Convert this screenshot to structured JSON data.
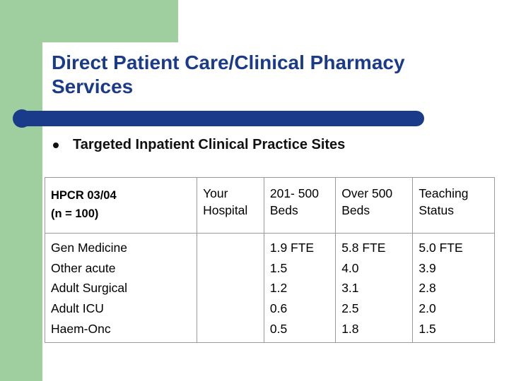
{
  "slide": {
    "title": "Direct Patient Care/Clinical Pharmacy Services",
    "bullet": "Targeted Inpatient Clinical Practice Sites"
  },
  "table": {
    "header": {
      "col0_line1": "HPCR 03/04",
      "col0_line2": "(n = 100)",
      "col1_line1": "Your",
      "col1_line2": "Hospital",
      "col2_line1": "201- 500",
      "col2_line2": "Beds",
      "col3_line1": "Over 500",
      "col3_line2": "Beds",
      "col4_line1": "Teaching",
      "col4_line2": "Status"
    },
    "categories": [
      "Gen Medicine",
      "Other acute",
      "Adult Surgical",
      "Adult ICU",
      "Haem-Onc"
    ],
    "your_hospital": [
      "",
      "",
      "",
      "",
      ""
    ],
    "beds_201_500": [
      "1.9 FTE",
      "1.5",
      "1.2",
      "0.6",
      "0.5"
    ],
    "over_500_beds": [
      "5.8 FTE",
      "4.0",
      "3.1",
      "2.5",
      "1.8"
    ],
    "teaching_status": [
      "5.0 FTE",
      "3.9",
      "2.8",
      "2.0",
      "1.5"
    ]
  }
}
